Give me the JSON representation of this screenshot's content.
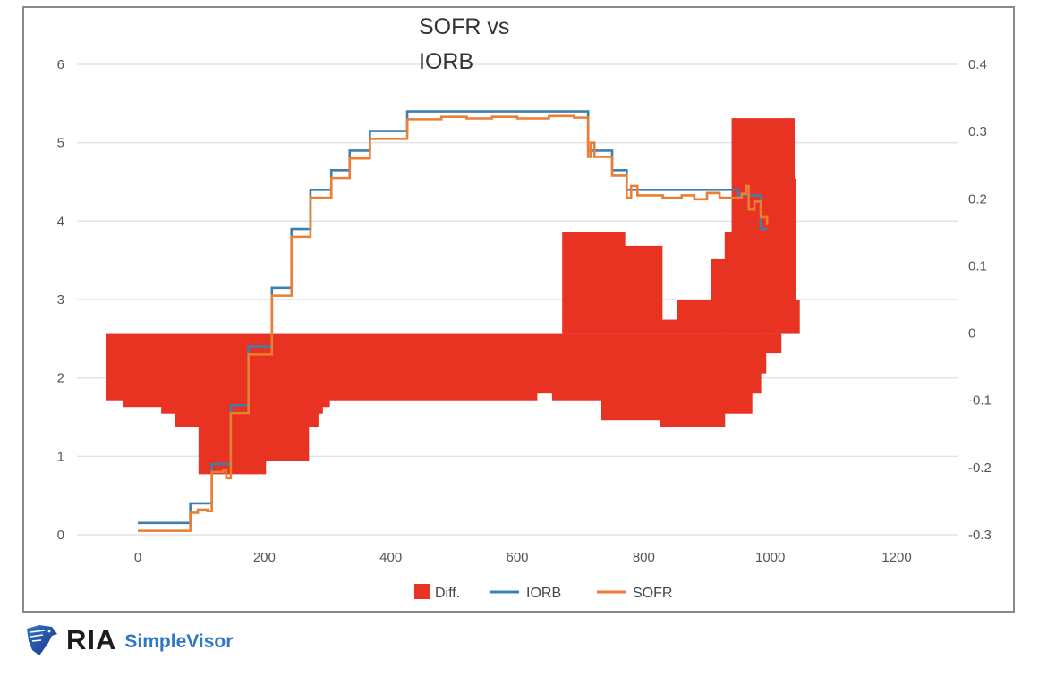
{
  "chart_data": {
    "type": "line",
    "title": "SOFR vs IORB",
    "title_lines": [
      "SOFR vs",
      "IORB"
    ],
    "xlim": [
      -100,
      1300
    ],
    "x_ticks": [
      "0",
      "200",
      "400",
      "600",
      "800",
      "1000",
      "1200"
    ],
    "x_tick_values": [
      0,
      200,
      400,
      600,
      800,
      1000,
      1200
    ],
    "ylim_left": [
      0,
      6
    ],
    "y_ticks_left": [
      "0",
      "1",
      "2",
      "3",
      "4",
      "5",
      "6"
    ],
    "y_tick_values_left": [
      0,
      1,
      2,
      3,
      4,
      5,
      6
    ],
    "ylim_right": [
      -0.3,
      0.4
    ],
    "y_ticks_right": [
      "-0.3",
      "-0.2",
      "-0.1",
      "0",
      "0.1",
      "0.2",
      "0.3",
      "0.4"
    ],
    "y_tick_values_right": [
      -0.3,
      -0.2,
      -0.1,
      0,
      0.1,
      0.2,
      0.3,
      0.4
    ],
    "grid": true,
    "legend_position": "bottom",
    "series": [
      {
        "name": "Diff.",
        "type": "column",
        "axis": "right",
        "color": "#e83323",
        "upper_steps": [
          [
            -51,
            0
          ],
          [
            671,
            0.15
          ],
          [
            770,
            0.13
          ],
          [
            829,
            0.02
          ],
          [
            853,
            0.05
          ],
          [
            907,
            0.11
          ],
          [
            928,
            0.15
          ],
          [
            939,
            0.32
          ],
          [
            1038,
            0.23
          ],
          [
            1040,
            0.05
          ],
          [
            1046,
            0.05
          ]
        ],
        "lower_steps": [
          [
            -51,
            -0.1
          ],
          [
            -24,
            -0.11
          ],
          [
            37,
            -0.12
          ],
          [
            58,
            -0.14
          ],
          [
            96,
            -0.21
          ],
          [
            202,
            -0.19
          ],
          [
            270,
            -0.14
          ],
          [
            285,
            -0.12
          ],
          [
            292,
            -0.11
          ],
          [
            303,
            -0.1
          ],
          [
            631,
            -0.09
          ],
          [
            655,
            -0.1
          ],
          [
            733,
            -0.13
          ],
          [
            826,
            -0.14
          ],
          [
            928,
            -0.12
          ],
          [
            971,
            -0.09
          ],
          [
            985,
            -0.06
          ],
          [
            993,
            -0.03
          ],
          [
            1017,
            0
          ],
          [
            1046,
            0
          ]
        ]
      },
      {
        "name": "IORB",
        "type": "step-line",
        "axis": "left",
        "color": "#3f7fae",
        "steps": [
          [
            0,
            0.15
          ],
          [
            83,
            0.4
          ],
          [
            117,
            0.9
          ],
          [
            147,
            1.65
          ],
          [
            175,
            2.4
          ],
          [
            212,
            3.15
          ],
          [
            243,
            3.9
          ],
          [
            273,
            4.4
          ],
          [
            306,
            4.65
          ],
          [
            335,
            4.9
          ],
          [
            367,
            5.15
          ],
          [
            426,
            5.4
          ],
          [
            712,
            4.9
          ],
          [
            750,
            4.65
          ],
          [
            773,
            4.4
          ],
          [
            950,
            4.33
          ],
          [
            985,
            3.9
          ],
          [
            995,
            3.9
          ]
        ]
      },
      {
        "name": "SOFR",
        "type": "step-line",
        "axis": "left",
        "color": "#ed7d31",
        "steps": [
          [
            0,
            0.05
          ],
          [
            83,
            0.28
          ],
          [
            95,
            0.32
          ],
          [
            110,
            0.3
          ],
          [
            117,
            0.8
          ],
          [
            135,
            0.82
          ],
          [
            140,
            0.72
          ],
          [
            147,
            1.55
          ],
          [
            175,
            2.3
          ],
          [
            212,
            3.05
          ],
          [
            243,
            3.8
          ],
          [
            273,
            4.3
          ],
          [
            306,
            4.55
          ],
          [
            335,
            4.8
          ],
          [
            367,
            5.05
          ],
          [
            426,
            5.3
          ],
          [
            480,
            5.33
          ],
          [
            520,
            5.31
          ],
          [
            560,
            5.33
          ],
          [
            600,
            5.31
          ],
          [
            650,
            5.34
          ],
          [
            690,
            5.32
          ],
          [
            712,
            4.82
          ],
          [
            716,
            5.0
          ],
          [
            722,
            4.82
          ],
          [
            750,
            4.58
          ],
          [
            773,
            4.3
          ],
          [
            780,
            4.45
          ],
          [
            790,
            4.33
          ],
          [
            830,
            4.3
          ],
          [
            860,
            4.33
          ],
          [
            880,
            4.28
          ],
          [
            900,
            4.36
          ],
          [
            920,
            4.3
          ],
          [
            955,
            4.35
          ],
          [
            962,
            4.45
          ],
          [
            966,
            4.15
          ],
          [
            975,
            4.25
          ],
          [
            985,
            4.05
          ],
          [
            995,
            3.95
          ]
        ]
      }
    ],
    "legend": [
      "Diff.",
      "IORB",
      "SOFR"
    ]
  },
  "branding": {
    "logo_main": "RIA",
    "logo_sub": "SimpleVisor",
    "logo_icon": "eagle-shield-icon"
  }
}
